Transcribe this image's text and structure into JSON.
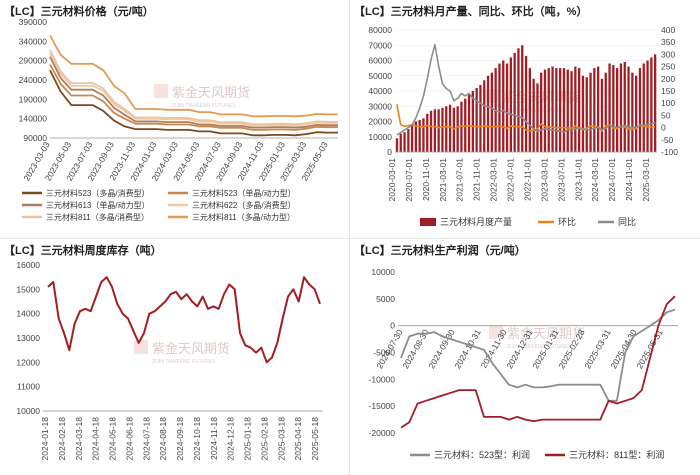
{
  "chart_data": [
    {
      "type": "line",
      "title": "【LC】三元材料价格（元/吨）",
      "x_ticks": [
        "2023-03-03",
        "2023-05-03",
        "2023-07-03",
        "2023-09-03",
        "2023-11-03",
        "2024-01-03",
        "2024-03-03",
        "2024-05-03",
        "2024-07-03",
        "2024-09-03",
        "2024-11-03",
        "2025-01-03",
        "2025-03-03",
        "2025-05-03"
      ],
      "y_ticks": [
        "390000",
        "340000",
        "290000",
        "240000",
        "190000",
        "140000",
        "90000"
      ],
      "ylim": [
        90000,
        390000
      ],
      "series": [
        {
          "name": "三元材料523（多晶/消费型）",
          "color": "#7b4a1f",
          "values": [
            265000,
            210000,
            175000,
            175000,
            175000,
            160000,
            135000,
            120000,
            113000,
            113000,
            113000,
            111000,
            111000,
            111000,
            107000,
            107000,
            102000,
            102000,
            102000,
            97000,
            97000,
            98000,
            98000,
            97000,
            100000,
            105000,
            104000,
            104000
          ]
        },
        {
          "name": "三元材料523（单晶/动力型）",
          "color": "#c8874e",
          "values": [
            280000,
            230000,
            200000,
            200000,
            200000,
            185000,
            155000,
            140000,
            127000,
            127000,
            127000,
            125000,
            125000,
            125000,
            120000,
            120000,
            116000,
            116000,
            116000,
            111000,
            111000,
            112000,
            112000,
            111000,
            114000,
            119000,
            118000,
            118000
          ]
        },
        {
          "name": "三元材料613（单晶/动力型）",
          "color": "#b07d5a",
          "values": [
            300000,
            245000,
            215000,
            215000,
            215000,
            200000,
            168000,
            150000,
            133000,
            133000,
            133000,
            131000,
            131000,
            131000,
            125000,
            125000,
            121000,
            121000,
            121000,
            117000,
            117000,
            118000,
            118000,
            117000,
            119000,
            124000,
            123000,
            123000
          ]
        },
        {
          "name": "三元材料622（多晶/消费型）",
          "color": "#f3c9a0",
          "values": [
            310000,
            255000,
            225000,
            225000,
            225000,
            212000,
            178000,
            160000,
            140000,
            140000,
            140000,
            138000,
            138000,
            138000,
            132000,
            132000,
            127000,
            127000,
            127000,
            122000,
            122000,
            123000,
            123000,
            122000,
            125000,
            130000,
            129000,
            129000
          ]
        },
        {
          "name": "三元材料811（多晶/消费型）",
          "color": "#e7c6a5",
          "values": [
            318000,
            262000,
            232000,
            232000,
            232000,
            218000,
            184000,
            165000,
            143000,
            143000,
            143000,
            142000,
            142000,
            142000,
            136000,
            136000,
            131000,
            131000,
            131000,
            126000,
            126000,
            127000,
            127000,
            126000,
            128000,
            133000,
            132000,
            132000
          ]
        },
        {
          "name": "三元材料811（多晶/动力型）",
          "color": "#e39a52",
          "values": [
            355000,
            305000,
            282000,
            282000,
            282000,
            265000,
            225000,
            205000,
            165000,
            165000,
            165000,
            163000,
            163000,
            163000,
            157000,
            157000,
            151000,
            151000,
            151000,
            146000,
            146000,
            147000,
            147000,
            146000,
            148000,
            152000,
            151000,
            151000
          ]
        }
      ]
    },
    {
      "type": "bar",
      "title": "【LC】三元材料月产量、同比、环比（吨，%）",
      "x_ticks": [
        "2020-03-01",
        "2020-07-01",
        "2020-11-01",
        "2021-03-01",
        "2021-07-01",
        "2021-11-01",
        "2022-03-01",
        "2022-07-01",
        "2022-11-01",
        "2023-03-01",
        "2023-07-01",
        "2023-11-01",
        "2024-03-01",
        "2024-07-01",
        "2024-11-01",
        "2025-03-01"
      ],
      "y_left_ticks": [
        "80000",
        "70000",
        "60000",
        "50000",
        "40000",
        "30000",
        "20000",
        "10000",
        "0"
      ],
      "y_right_ticks": [
        "400",
        "350",
        "300",
        "250",
        "200",
        "150",
        "100",
        "50",
        "0",
        "-50",
        "-100"
      ],
      "ylim_left": [
        0,
        80000
      ],
      "ylim_right": [
        -100,
        400
      ],
      "series": [
        {
          "name": "三元材料月度产量",
          "type": "bar",
          "color": "#a31d24",
          "values": [
            9000,
            12000,
            13000,
            15000,
            18000,
            20000,
            21000,
            22000,
            25000,
            27000,
            28000,
            28000,
            29000,
            30000,
            31000,
            29000,
            30000,
            33000,
            35000,
            38000,
            40000,
            42000,
            44000,
            47000,
            50000,
            52000,
            55000,
            58000,
            60000,
            58000,
            62000,
            65000,
            68000,
            70000,
            63000,
            55000,
            48000,
            45000,
            52000,
            54000,
            55000,
            56000,
            55000,
            55000,
            55000,
            54000,
            53000,
            56000,
            55000,
            50000,
            49000,
            52000,
            55000,
            56000,
            48000,
            52000,
            58000,
            57000,
            55000,
            58000,
            59000,
            56000,
            52000,
            50000,
            55000,
            58000,
            60000,
            62000,
            64000
          ]
        },
        {
          "name": "环比",
          "type": "line",
          "color": "#e8821e",
          "values": [
            95,
            12,
            5,
            8,
            12,
            6,
            4,
            3,
            8,
            5,
            4,
            0,
            3,
            4,
            3,
            -5,
            2,
            7,
            5,
            8,
            5,
            4,
            4,
            6,
            5,
            4,
            5,
            5,
            3,
            -3,
            6,
            5,
            4,
            3,
            -10,
            -13,
            -12,
            -5,
            15,
            4,
            2,
            2,
            -1,
            0,
            0,
            -2,
            -2,
            5,
            -2,
            -9,
            -2,
            6,
            5,
            2,
            -14,
            8,
            11,
            -2,
            -4,
            5,
            2,
            -5,
            -7,
            -4,
            10,
            5,
            3,
            3,
            3
          ]
        },
        {
          "name": "同比",
          "type": "line",
          "color": "#8c8c8c",
          "values": [
            -30,
            -20,
            -10,
            0,
            10,
            40,
            80,
            130,
            200,
            280,
            340,
            250,
            180,
            160,
            150,
            110,
            120,
            140,
            130,
            140,
            120,
            110,
            100,
            90,
            85,
            80,
            70,
            65,
            70,
            60,
            55,
            50,
            45,
            40,
            25,
            10,
            -5,
            -15,
            -10,
            -5,
            -8,
            -10,
            -12,
            -15,
            -18,
            -10,
            -8,
            -5,
            0,
            -5,
            -10,
            -8,
            -3,
            2,
            -8,
            -3,
            10,
            5,
            0,
            5,
            8,
            3,
            0,
            2,
            8,
            10,
            12,
            15,
            20
          ]
        }
      ]
    },
    {
      "type": "line",
      "title": "【LC】三元材料周度库存（吨）",
      "x_ticks": [
        "2024-01-18",
        "2024-02-18",
        "2024-03-18",
        "2024-04-18",
        "2024-05-18",
        "2024-06-18",
        "2024-07-18",
        "2024-08-18",
        "2024-09-18",
        "2024-10-18",
        "2024-11-18",
        "2024-12-18",
        "2025-01-18",
        "2025-02-18",
        "2025-03-18",
        "2025-04-18",
        "2025-05-18"
      ],
      "y_ticks": [
        "16000",
        "15000",
        "14000",
        "13000",
        "12000",
        "11000",
        "10000"
      ],
      "ylim": [
        10000,
        16000
      ],
      "series": [
        {
          "name": "周度库存",
          "color": "#a31d24",
          "values": [
            15100,
            15300,
            13800,
            13200,
            12500,
            13600,
            14100,
            14200,
            14100,
            14700,
            15300,
            15500,
            15100,
            14400,
            14000,
            13800,
            13300,
            12800,
            13200,
            14000,
            14100,
            14300,
            14500,
            14800,
            14900,
            14600,
            14800,
            14500,
            14300,
            14700,
            14200,
            14300,
            14200,
            14800,
            15200,
            15000,
            13200,
            12700,
            12600,
            12400,
            12600,
            12000,
            12200,
            12800,
            13800,
            14700,
            15000,
            14500,
            15500,
            15200,
            15000,
            14400
          ]
        }
      ]
    },
    {
      "type": "line",
      "title": "【LC】三元材料生产利润（元/吨）",
      "x_ticks": [
        "2024-07-30",
        "2024-08-30",
        "2024-09-30",
        "2024-10-31",
        "2024-11-30",
        "2024-12-31",
        "2025-01-31",
        "2025-02-28",
        "2025-03-31",
        "2025-04-30",
        "2025-05-31"
      ],
      "y_ticks": [
        "10000",
        "5000",
        "0",
        "-5000",
        "-10000",
        "-15000",
        "-20000"
      ],
      "ylim": [
        -20000,
        10000
      ],
      "series": [
        {
          "name": "三元材料：523型：利润",
          "color": "#8c8c8c",
          "values": [
            -6000,
            -2000,
            -1500,
            -1500,
            -1200,
            -2000,
            -2500,
            -3000,
            -3500,
            -4000,
            -4500,
            -7000,
            -9000,
            -11000,
            -11500,
            -11000,
            -11500,
            -11500,
            -11300,
            -11000,
            -11000,
            -11000,
            -11000,
            -11000,
            -11000,
            -14000,
            -14000,
            -5000,
            -2000,
            -1000,
            0,
            1000,
            2500,
            3000
          ]
        },
        {
          "name": "三元材料：811型：利润",
          "color": "#a31d24",
          "values": [
            -19000,
            -18000,
            -14500,
            -14000,
            -13500,
            -13000,
            -12500,
            -12000,
            -12000,
            -12000,
            -17000,
            -17000,
            -17000,
            -17500,
            -17000,
            -17500,
            -17800,
            -17500,
            -17500,
            -17500,
            -17500,
            -17500,
            -17500,
            -17500,
            -17500,
            -14000,
            -14500,
            -14000,
            -13500,
            -12000,
            -6000,
            0,
            4000,
            5500
          ]
        }
      ]
    }
  ],
  "watermark": {
    "name": "紫金天风期货",
    "sub": "ZIJIN TIANFENG FUTURES"
  }
}
